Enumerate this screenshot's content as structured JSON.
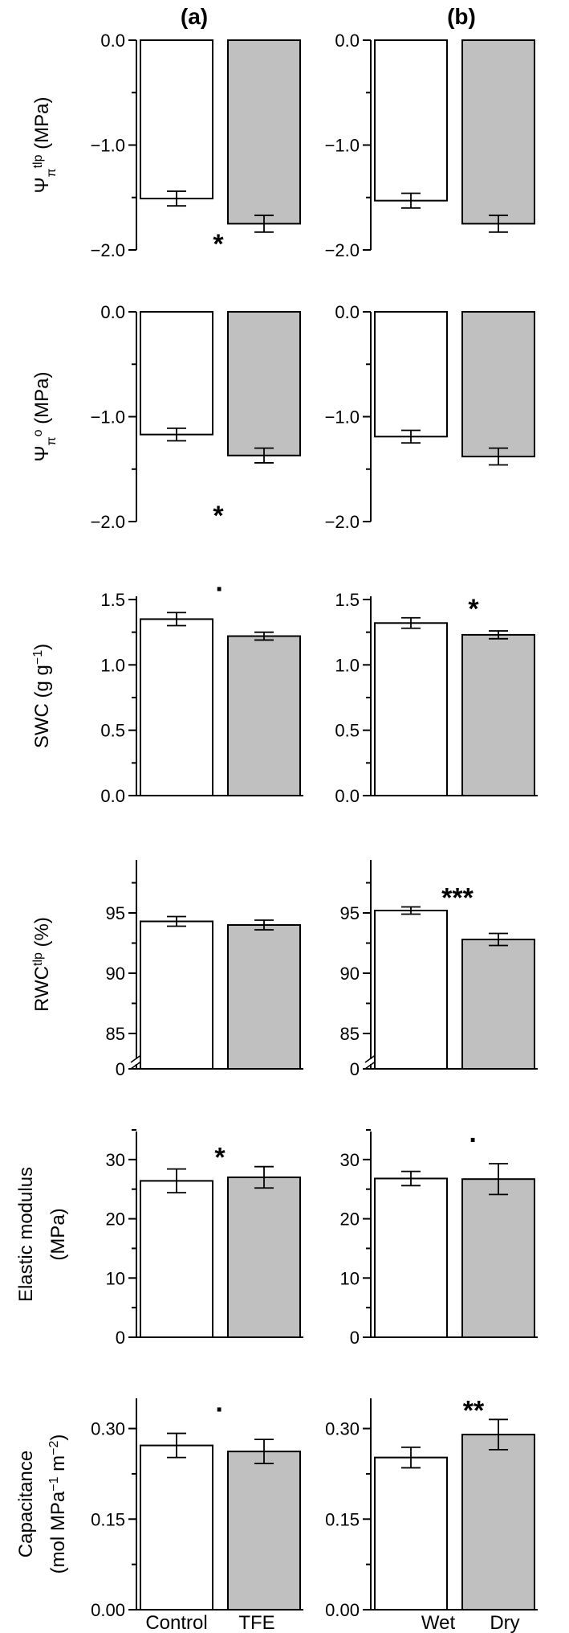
{
  "columns": [
    {
      "label": "(a)",
      "categories": [
        "Control",
        "TFE"
      ]
    },
    {
      "label": "(b)",
      "categories": [
        "Wet",
        "Dry"
      ]
    }
  ],
  "colors": {
    "first_bar": "#ffffff",
    "second_bar": "#c0c0c0",
    "stroke": "#000000"
  },
  "chart_data": [
    {
      "type": "bar",
      "ylabel": "Ψπtlp (MPa)",
      "ylabel_lines": [
        {
          "parts": [
            {
              "t": "Ψ"
            },
            {
              "t": "π",
              "sub": true
            },
            {
              "t": "tlp",
              "sup": true
            },
            {
              "t": " (MPa)"
            }
          ]
        }
      ],
      "ylim": [
        -2.0,
        0.0
      ],
      "yticks": [
        0.0,
        -1.0,
        -2.0
      ],
      "ytick_labels": [
        "0.0",
        "−1.0",
        "−2.0"
      ],
      "panels": [
        {
          "column": "(a)",
          "categories": [
            "Control",
            "TFE"
          ],
          "values": [
            -1.51,
            -1.75
          ],
          "errors": [
            0.07,
            0.08
          ],
          "significance": "*"
        },
        {
          "column": "(b)",
          "categories": [
            "Wet",
            "Dry"
          ],
          "values": [
            -1.53,
            -1.75
          ],
          "errors": [
            0.07,
            0.08
          ],
          "significance": ""
        }
      ]
    },
    {
      "type": "bar",
      "ylabel": "Ψπo (MPa)",
      "ylabel_lines": [
        {
          "parts": [
            {
              "t": "Ψ"
            },
            {
              "t": "π",
              "sub": true
            },
            {
              "t": "o",
              "sup": true
            },
            {
              "t": " (MPa)"
            }
          ]
        }
      ],
      "ylim": [
        -2.0,
        0.0
      ],
      "yticks": [
        0.0,
        -1.0,
        -2.0
      ],
      "ytick_labels": [
        "0.0",
        "−1.0",
        "−2.0"
      ],
      "panels": [
        {
          "column": "(a)",
          "categories": [
            "Control",
            "TFE"
          ],
          "values": [
            -1.17,
            -1.37
          ],
          "errors": [
            0.06,
            0.07
          ],
          "significance": "*"
        },
        {
          "column": "(b)",
          "categories": [
            "Wet",
            "Dry"
          ],
          "values": [
            -1.19,
            -1.38
          ],
          "errors": [
            0.06,
            0.08
          ],
          "significance": ""
        }
      ]
    },
    {
      "type": "bar",
      "ylabel": "SWC (g g−1)",
      "ylabel_lines": [
        {
          "parts": [
            {
              "t": "SWC (g g"
            },
            {
              "t": "−1",
              "sup": true
            },
            {
              "t": ")"
            }
          ]
        }
      ],
      "ylim": [
        0.0,
        1.5
      ],
      "yticks": [
        0.0,
        0.5,
        1.0,
        1.5
      ],
      "ytick_labels": [
        "0.0",
        "0.5",
        "1.0",
        "1.5"
      ],
      "panels": [
        {
          "column": "(a)",
          "categories": [
            "Control",
            "TFE"
          ],
          "values": [
            1.35,
            1.22
          ],
          "errors": [
            0.05,
            0.03
          ],
          "significance": "·"
        },
        {
          "column": "(b)",
          "categories": [
            "Wet",
            "Dry"
          ],
          "values": [
            1.32,
            1.23
          ],
          "errors": [
            0.04,
            0.03
          ],
          "significance": "*"
        }
      ]
    },
    {
      "type": "bar",
      "ylabel": "RWCtlp (%)",
      "ylabel_lines": [
        {
          "parts": [
            {
              "t": "RWC"
            },
            {
              "t": "tlp",
              "sup": true
            },
            {
              "t": " (%)"
            }
          ]
        }
      ],
      "ylim": [
        0,
        100
      ],
      "axis_break": true,
      "yticks": [
        0,
        85,
        90,
        95
      ],
      "ytick_labels": [
        "0",
        "85",
        "90",
        "95"
      ],
      "panels": [
        {
          "column": "(a)",
          "categories": [
            "Control",
            "TFE"
          ],
          "values": [
            94.3,
            94.0
          ],
          "errors": [
            0.4,
            0.4
          ],
          "significance": ""
        },
        {
          "column": "(b)",
          "categories": [
            "Wet",
            "Dry"
          ],
          "values": [
            95.2,
            92.8
          ],
          "errors": [
            0.3,
            0.5
          ],
          "significance": "***"
        }
      ]
    },
    {
      "type": "bar",
      "ylabel": "Elastic modulus (MPa)",
      "ylabel_lines": [
        {
          "parts": [
            {
              "t": "Elastic modulus"
            }
          ]
        },
        {
          "parts": [
            {
              "t": "(MPa)"
            }
          ]
        }
      ],
      "ylim": [
        0,
        35
      ],
      "yticks": [
        0,
        10,
        20,
        30
      ],
      "ytick_labels": [
        "0",
        "10",
        "20",
        "30"
      ],
      "panels": [
        {
          "column": "(a)",
          "categories": [
            "Control",
            "TFE"
          ],
          "values": [
            26.4,
            27.0
          ],
          "errors": [
            2.0,
            1.8
          ],
          "significance": "*"
        },
        {
          "column": "(b)",
          "categories": [
            "Wet",
            "Dry"
          ],
          "values": [
            26.8,
            26.7
          ],
          "errors": [
            1.2,
            2.6
          ],
          "significance": "·"
        }
      ]
    },
    {
      "type": "bar",
      "ylabel": "Capacitance (mol MPa−1 m−2)",
      "ylabel_lines": [
        {
          "parts": [
            {
              "t": "Capacitance"
            }
          ]
        },
        {
          "parts": [
            {
              "t": "(mol MPa"
            },
            {
              "t": "−1",
              "sup": true
            },
            {
              "t": " m"
            },
            {
              "t": "−2",
              "sup": true
            },
            {
              "t": ")"
            }
          ]
        }
      ],
      "ylim": [
        0.0,
        0.35
      ],
      "yticks": [
        0.0,
        0.15,
        0.3
      ],
      "ytick_labels": [
        "0.00",
        "0.15",
        "0.30"
      ],
      "panels": [
        {
          "column": "(a)",
          "categories": [
            "Control",
            "TFE"
          ],
          "values": [
            0.272,
            0.262
          ],
          "errors": [
            0.02,
            0.02
          ],
          "significance": "·"
        },
        {
          "column": "(b)",
          "categories": [
            "Wet",
            "Dry"
          ],
          "values": [
            0.252,
            0.29
          ],
          "errors": [
            0.017,
            0.025
          ],
          "significance": "**"
        }
      ]
    }
  ]
}
